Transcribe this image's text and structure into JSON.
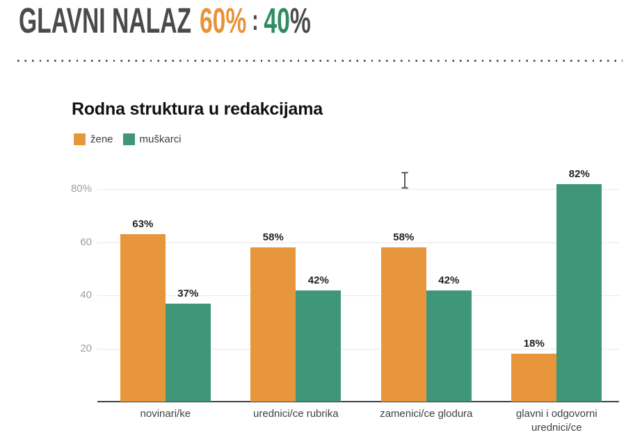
{
  "palette": {
    "dark_text": "#4A4A4A",
    "header_orange": "#E8923A",
    "header_green": "#2E8C62",
    "bar_orange": "#E8963C",
    "bar_green": "#3F9679",
    "grid": "#E7E8EA",
    "axis": "#3C4043",
    "ytick_text": "#9E9E9E"
  },
  "header": {
    "title": "GLAVNI NALAZ",
    "ratio_left": "60%",
    "separator": ":",
    "ratio_right": "40",
    "ratio_right_pct": "%"
  },
  "chart_data": {
    "type": "bar",
    "title": "Rodna struktura u redakcijama",
    "categories": [
      "novinari/ke",
      "urednici/ce rubrika",
      "zamenici/ce glodura",
      "glavni i odgovorni urednici/ce"
    ],
    "series": [
      {
        "name": "žene",
        "color": "#E8963C",
        "values": [
          63,
          58,
          58,
          18
        ]
      },
      {
        "name": "muškarci",
        "color": "#3F9679",
        "values": [
          37,
          42,
          42,
          82
        ]
      }
    ],
    "value_suffix": "%",
    "y_ticks": [
      {
        "value": 80,
        "label": "80%"
      },
      {
        "value": 60,
        "label": "60"
      },
      {
        "value": 40,
        "label": "40"
      },
      {
        "value": 20,
        "label": "20"
      }
    ],
    "ylim": [
      0,
      88
    ],
    "grid": true,
    "legend_position": "top-left",
    "xlabel": "",
    "ylabel": ""
  },
  "cursor": {
    "visible": true,
    "type": "text-ibeam"
  }
}
